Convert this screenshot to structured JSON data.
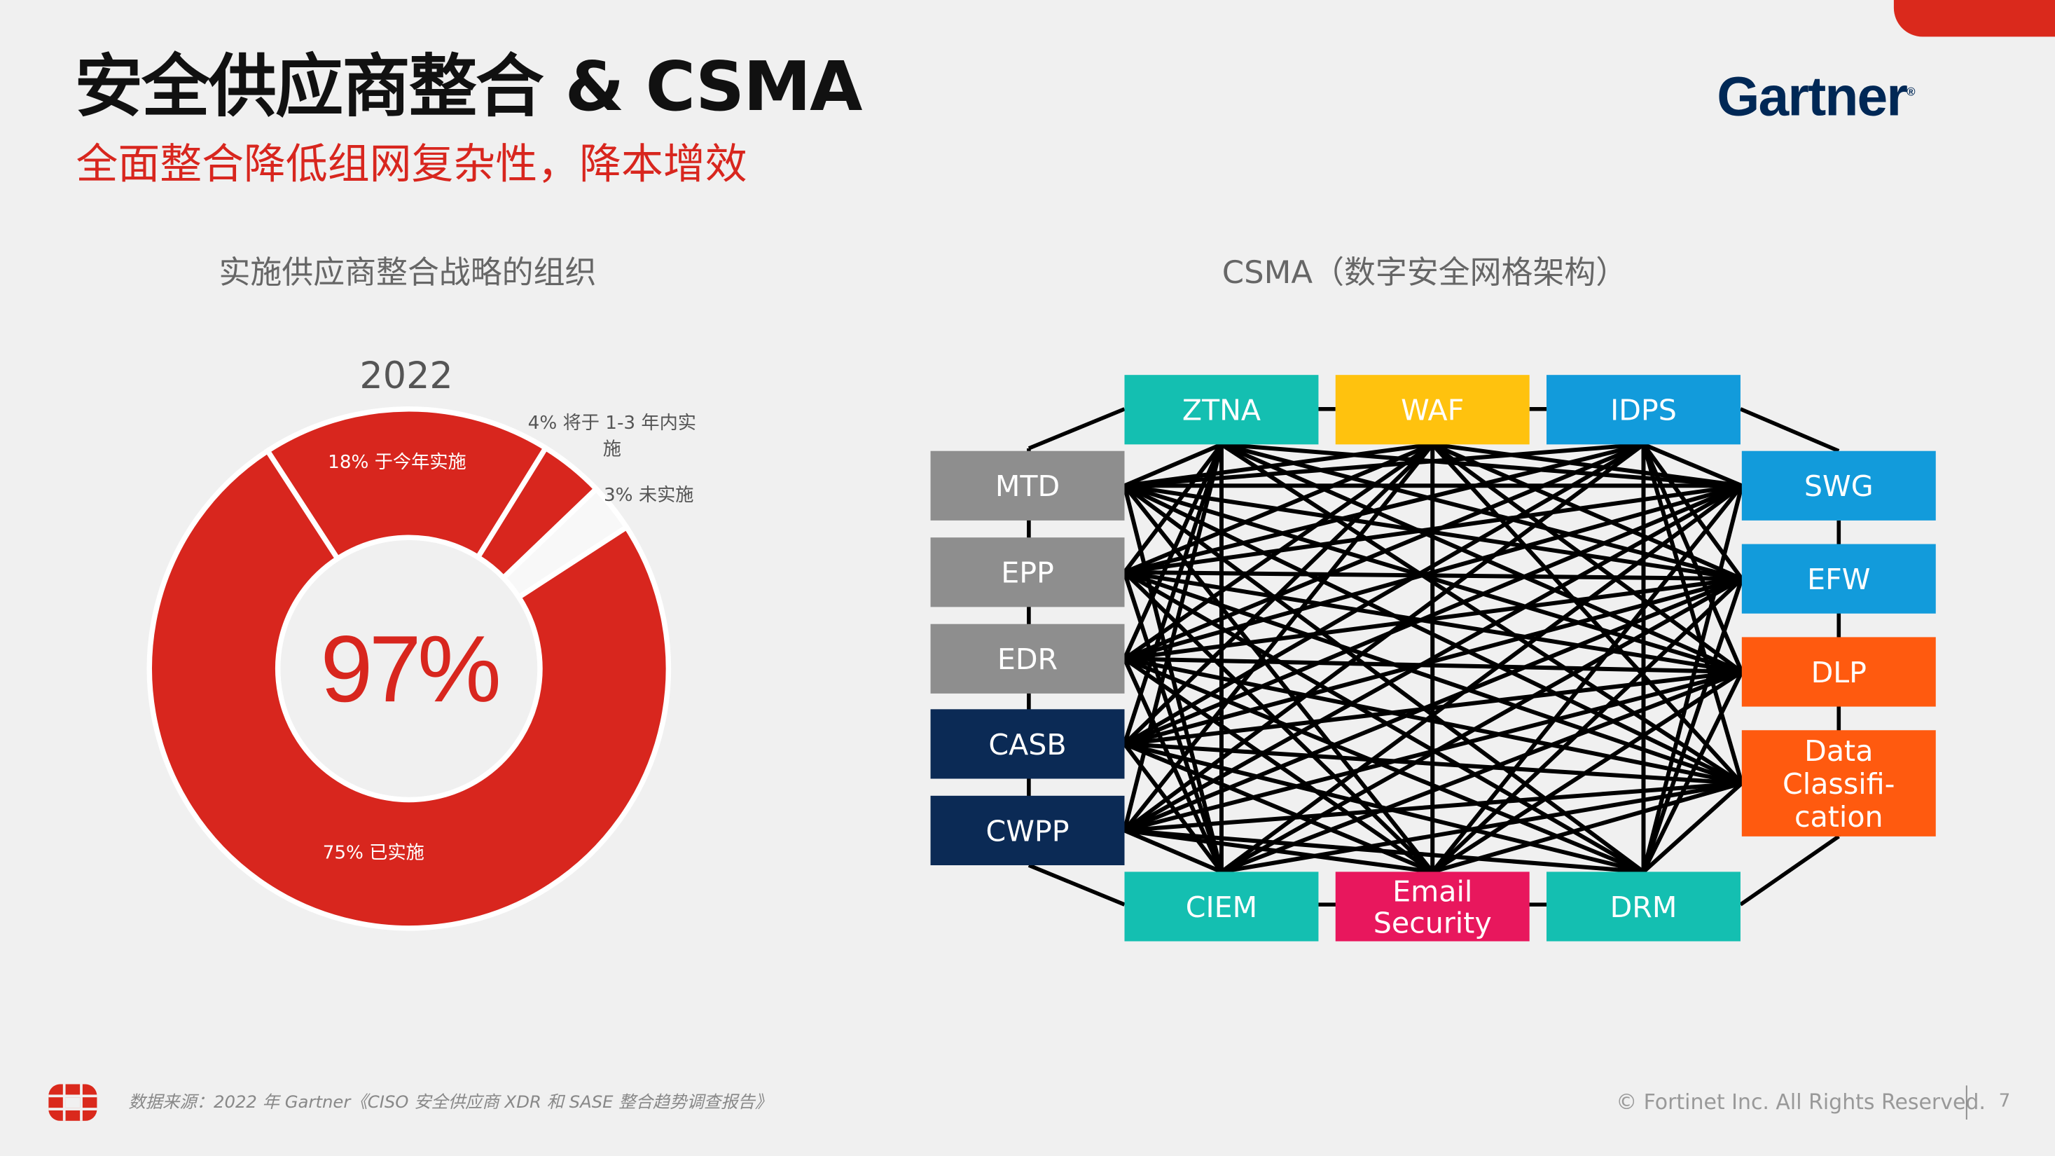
{
  "header": {
    "title": "安全供应商整合 & CSMA",
    "subtitle": "全面整合降低组网复杂性，降本增效",
    "brand_logo": "Gartner",
    "accent_color": "#da291c"
  },
  "left_panel": {
    "heading": "实施供应商整合战略的组织"
  },
  "right_panel": {
    "heading": "CSMA（数字安全网格架构）"
  },
  "chart_data": {
    "type": "pie",
    "title": "2022",
    "center_label": "97%",
    "slices": [
      {
        "label": "18% 于今年实施",
        "value": 18,
        "color": "#d8261e"
      },
      {
        "label": "4% 将于 1-3 年内实施",
        "value": 4,
        "color": "#d8261e"
      },
      {
        "label": "3% 未实施",
        "value": 3,
        "color": "#f8f8f8"
      },
      {
        "label": "75% 已实施",
        "value": 75,
        "color": "#d8261e"
      }
    ]
  },
  "csma": {
    "nodes": [
      {
        "label": "ZTNA",
        "group": "top",
        "color": "#14bfb1"
      },
      {
        "label": "WAF",
        "group": "top",
        "color": "#ffc20e"
      },
      {
        "label": "IDPS",
        "group": "top",
        "color": "#129bdb"
      },
      {
        "label": "MTD",
        "group": "left",
        "color": "#8e8e8e"
      },
      {
        "label": "EPP",
        "group": "left",
        "color": "#8e8e8e"
      },
      {
        "label": "EDR",
        "group": "left",
        "color": "#8e8e8e"
      },
      {
        "label": "CASB",
        "group": "left",
        "color": "#0b2a55"
      },
      {
        "label": "CWPP",
        "group": "left",
        "color": "#0b2a55"
      },
      {
        "label": "SWG",
        "group": "right",
        "color": "#129bdb"
      },
      {
        "label": "EFW",
        "group": "right",
        "color": "#129bdb"
      },
      {
        "label": "DLP",
        "group": "right",
        "color": "#ff5a0f"
      },
      {
        "label": "Data Classifi- cation",
        "group": "right",
        "color": "#ff5a0f"
      },
      {
        "label": "CIEM",
        "group": "bottom",
        "color": "#14bfb1"
      },
      {
        "label": "Email Security",
        "group": "bottom",
        "color": "#e8175d"
      },
      {
        "label": "DRM",
        "group": "bottom",
        "color": "#14bfb1"
      }
    ]
  },
  "footer": {
    "source": "数据来源：2022 年 Gartner《CISO 安全供应商 XDR 和 SASE 整合趋势调查报告》",
    "copyright": "© Fortinet Inc. All Rights Reserved.",
    "page_number": "7",
    "logo": "Fortinet"
  }
}
